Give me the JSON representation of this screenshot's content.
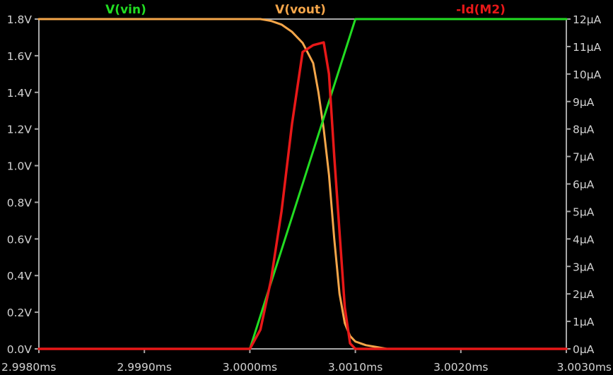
{
  "chart_data": {
    "type": "line",
    "title": "",
    "xlabel": "",
    "ylabel": "",
    "y2label": "",
    "grid": false,
    "legend_position": "top",
    "x_unit": "ms",
    "x_ticks": [
      "2.9980ms",
      "2.9990ms",
      "3.0000ms",
      "3.0010ms",
      "3.0020ms",
      "3.0030ms"
    ],
    "x_tick_values": [
      2.998,
      2.999,
      3.0,
      3.001,
      3.002,
      3.003
    ],
    "xlim": [
      2.998,
      3.003
    ],
    "y_left_ticks": [
      "0.0V",
      "0.2V",
      "0.4V",
      "0.6V",
      "0.8V",
      "1.0V",
      "1.2V",
      "1.4V",
      "1.6V",
      "1.8V"
    ],
    "y_left_tick_values": [
      0,
      0.2,
      0.4,
      0.6,
      0.8,
      1.0,
      1.2,
      1.4,
      1.6,
      1.8
    ],
    "ylim_left": [
      0,
      1.8
    ],
    "y_right_ticks": [
      "0µA",
      "1µA",
      "2µA",
      "3µA",
      "4µA",
      "5µA",
      "6µA",
      "7µA",
      "8µA",
      "9µA",
      "10µA",
      "11µA",
      "12µA"
    ],
    "y_right_tick_values": [
      0,
      1,
      2,
      3,
      4,
      5,
      6,
      7,
      8,
      9,
      10,
      11,
      12
    ],
    "ylim_right": [
      0,
      12
    ],
    "series": [
      {
        "name": "V(vin)",
        "color": "#22dd22",
        "axis": "left",
        "x": [
          2.998,
          3.0,
          3.001,
          3.003
        ],
        "y": [
          0.0,
          0.0,
          1.8,
          1.8
        ]
      },
      {
        "name": "V(vout)",
        "color": "#f5a64a",
        "axis": "left",
        "x": [
          2.998,
          3.0,
          3.0001,
          3.0002,
          3.0003,
          3.0004,
          3.0005,
          3.0006,
          3.00065,
          3.0007,
          3.00075,
          3.0008,
          3.00085,
          3.0009,
          3.00095,
          3.001,
          3.0011,
          3.0012,
          3.0013,
          3.003
        ],
        "y": [
          1.8,
          1.8,
          1.8,
          1.79,
          1.77,
          1.73,
          1.67,
          1.56,
          1.4,
          1.2,
          0.95,
          0.6,
          0.3,
          0.14,
          0.07,
          0.04,
          0.02,
          0.01,
          0.0,
          0.0
        ]
      },
      {
        "name": "-Id(M2)",
        "color": "#e81818",
        "axis": "right",
        "x": [
          2.998,
          3.0,
          3.0001,
          3.0002,
          3.0003,
          3.0004,
          3.0005,
          3.0006,
          3.0007,
          3.00075,
          3.0008,
          3.0009,
          3.00095,
          3.001,
          3.003
        ],
        "y": [
          0.0,
          0.0,
          0.7,
          2.5,
          5.0,
          8.2,
          10.8,
          11.05,
          11.15,
          10.0,
          7.0,
          1.5,
          0.2,
          0.0,
          0.0
        ]
      }
    ]
  }
}
